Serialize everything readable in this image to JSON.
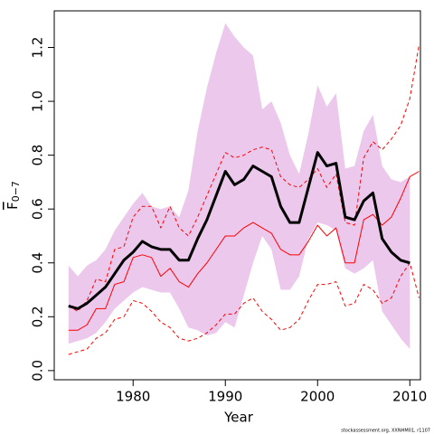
{
  "chart_data": {
    "type": "band-line",
    "xlabel": "Year",
    "ylabel": {
      "main": "F",
      "sub": "0−7"
    },
    "footer": "stockassessment.org, XXNHM01, r1107",
    "x": [
      1973,
      1974,
      1975,
      1976,
      1977,
      1978,
      1979,
      1980,
      1981,
      1982,
      1983,
      1984,
      1985,
      1986,
      1987,
      1988,
      1989,
      1990,
      1991,
      1992,
      1993,
      1994,
      1995,
      1996,
      1997,
      1998,
      1999,
      2000,
      2001,
      2002,
      2003,
      2004,
      2005,
      2006,
      2007,
      2008,
      2009,
      2010,
      2011
    ],
    "xlim": [
      1971.45,
      2011.15
    ],
    "xticks": [
      1980,
      1990,
      2000,
      2010
    ],
    "ylim": [
      -0.034,
      1.336
    ],
    "yticks": [
      {
        "value": 0,
        "label": "0.0"
      },
      {
        "value": 0.2,
        "label": "0.2"
      },
      {
        "value": 0.4,
        "label": "0.4"
      },
      {
        "value": 0.6,
        "label": "0.6"
      },
      {
        "value": 0.8,
        "label": "0.8"
      },
      {
        "value": 1.0,
        "label": "1.0"
      },
      {
        "value": 1.2,
        "label": "1.2"
      }
    ],
    "band": {
      "color": "#ecc8ec",
      "upper": [
        0.39,
        0.35,
        0.39,
        0.41,
        0.45,
        0.52,
        0.57,
        0.62,
        0.66,
        0.61,
        0.6,
        0.61,
        0.57,
        0.67,
        0.89,
        1.05,
        1.18,
        1.29,
        1.24,
        1.2,
        1.17,
        0.97,
        1.0,
        0.92,
        0.8,
        0.73,
        0.88,
        1.06,
        0.98,
        1.03,
        0.75,
        0.76,
        0.89,
        0.95,
        0.76,
        0.71,
        0.7,
        0.72,
        null
      ],
      "lower": [
        0.1,
        0.11,
        0.12,
        0.14,
        0.18,
        0.23,
        0.26,
        0.29,
        0.31,
        0.3,
        0.29,
        0.29,
        0.23,
        0.16,
        0.15,
        0.13,
        0.14,
        0.18,
        0.16,
        0.28,
        0.4,
        0.5,
        0.45,
        0.3,
        0.3,
        0.35,
        0.49,
        0.55,
        0.54,
        0.52,
        0.38,
        0.36,
        0.38,
        0.41,
        0.22,
        0.17,
        0.12,
        0.08,
        null
      ]
    },
    "lines": [
      {
        "color": "#ff0000",
        "style": "dashed",
        "width": 1,
        "values": [
          0.24,
          0.22,
          0.26,
          0.34,
          0.33,
          0.45,
          0.46,
          0.57,
          0.61,
          0.61,
          0.53,
          0.61,
          0.53,
          0.5,
          0.57,
          0.65,
          0.73,
          0.81,
          0.79,
          0.8,
          0.82,
          0.83,
          0.82,
          0.72,
          0.69,
          0.68,
          0.71,
          0.75,
          0.68,
          0.73,
          0.55,
          0.54,
          0.79,
          0.85,
          0.82,
          0.86,
          0.91,
          1.01,
          1.21
        ]
      },
      {
        "color": "#ff0000",
        "style": "dashed",
        "width": 1,
        "values": [
          0.06,
          0.07,
          0.08,
          0.12,
          0.14,
          0.19,
          0.2,
          0.26,
          0.25,
          0.22,
          0.18,
          0.16,
          0.12,
          0.11,
          0.12,
          0.14,
          0.17,
          0.21,
          0.21,
          0.25,
          0.27,
          0.22,
          0.19,
          0.15,
          0.16,
          0.19,
          0.26,
          0.32,
          0.32,
          0.33,
          0.24,
          0.25,
          0.32,
          0.3,
          0.25,
          0.27,
          0.35,
          0.4,
          0.27
        ]
      },
      {
        "color": "#ff0000",
        "style": "solid",
        "width": 1,
        "values": [
          0.15,
          0.15,
          0.17,
          0.23,
          0.23,
          0.32,
          0.33,
          0.42,
          0.43,
          0.42,
          0.35,
          0.38,
          0.33,
          0.31,
          0.36,
          0.4,
          0.45,
          0.5,
          0.5,
          0.53,
          0.55,
          0.53,
          0.51,
          0.45,
          0.43,
          0.43,
          0.48,
          0.54,
          0.5,
          0.53,
          0.4,
          0.4,
          0.56,
          0.58,
          0.54,
          0.57,
          0.64,
          0.72,
          0.74
        ]
      },
      {
        "color": "#000000",
        "style": "solid",
        "width": 3,
        "values": [
          0.24,
          0.23,
          0.25,
          0.28,
          0.31,
          0.36,
          0.41,
          0.44,
          0.48,
          0.46,
          0.45,
          0.45,
          0.41,
          0.41,
          0.49,
          0.56,
          0.65,
          0.74,
          0.69,
          0.71,
          0.76,
          0.74,
          0.72,
          0.61,
          0.55,
          0.55,
          0.68,
          0.81,
          0.76,
          0.77,
          0.57,
          0.56,
          0.63,
          0.66,
          0.49,
          0.44,
          0.41,
          0.4,
          null
        ]
      }
    ]
  }
}
